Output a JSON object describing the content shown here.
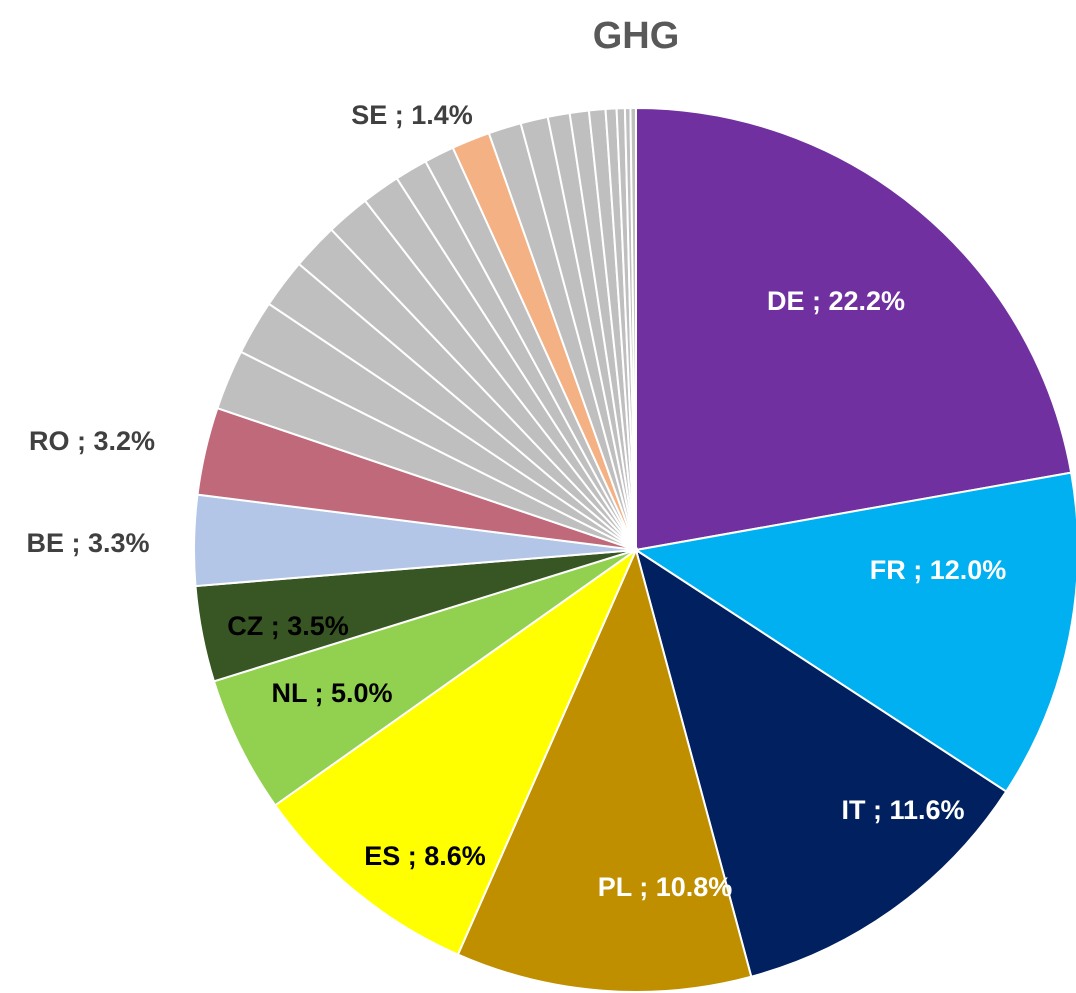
{
  "chart_data": {
    "type": "pie",
    "title": "GHG",
    "values": [
      22.2,
      12.0,
      11.6,
      10.8,
      8.6,
      5.0,
      3.5,
      3.3,
      3.2,
      2.2,
      2.0,
      1.8,
      1.7,
      1.6,
      1.4,
      1.2,
      1.1,
      1.4,
      1.2,
      1.0,
      0.8,
      0.7,
      0.6,
      0.4,
      0.3,
      0.2,
      0.2
    ],
    "value_labels": [
      "DE ; 22.2%",
      "FR ; 12.0%",
      "IT ; 11.6%",
      "PL ; 10.8%",
      "ES ; 8.6%",
      "NL ; 5.0%",
      "CZ ; 3.5%",
      "BE ; 3.3%",
      "RO ; 3.2%",
      null,
      null,
      null,
      null,
      null,
      null,
      null,
      null,
      "SE ; 1.4%",
      null,
      null,
      null,
      null,
      null,
      null,
      null,
      null,
      null
    ],
    "colors": [
      "#7030a0",
      "#00b0f0",
      "#002060",
      "#bf8f00",
      "#ffff00",
      "#92d050",
      "#375623",
      "#b4c6e7",
      "#c0697a",
      "#bfbfbf",
      "#bfbfbf",
      "#bfbfbf",
      "#bfbfbf",
      "#bfbfbf",
      "#bfbfbf",
      "#bfbfbf",
      "#bfbfbf",
      "#f4b183",
      "#bfbfbf",
      "#bfbfbf",
      "#bfbfbf",
      "#bfbfbf",
      "#bfbfbf",
      "#bfbfbf",
      "#bfbfbf",
      "#bfbfbf",
      "#bfbfbf"
    ]
  }
}
